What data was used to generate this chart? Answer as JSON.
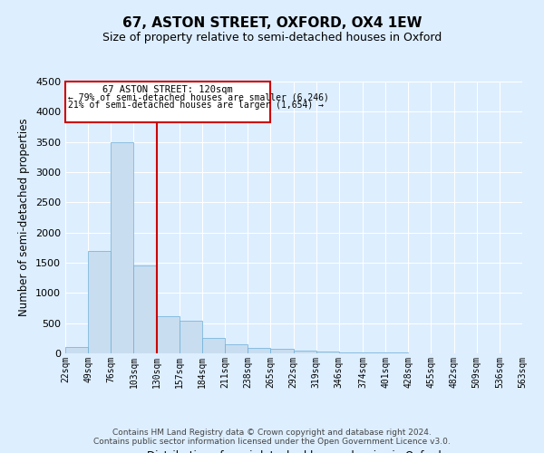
{
  "title": "67, ASTON STREET, OXFORD, OX4 1EW",
  "subtitle": "Size of property relative to semi-detached houses in Oxford",
  "xlabel": "Distribution of semi-detached houses by size in Oxford",
  "ylabel": "Number of semi-detached properties",
  "bin_edges": [
    22,
    49,
    76,
    103,
    130,
    157,
    184,
    211,
    238,
    265,
    292,
    319,
    346,
    374,
    401,
    428,
    455,
    482,
    509,
    536,
    563
  ],
  "bar_heights": [
    100,
    1700,
    3500,
    1450,
    620,
    540,
    250,
    150,
    95,
    75,
    50,
    28,
    18,
    12,
    8,
    6,
    4,
    4,
    2,
    2
  ],
  "bar_color": "#c8ddf0",
  "bar_edge_color": "#6aaed6",
  "vline_x": 130,
  "vline_color": "#cc0000",
  "annotation_title": "67 ASTON STREET: 120sqm",
  "annotation_line1": "← 79% of semi-detached houses are smaller (6,246)",
  "annotation_line2": "21% of semi-detached houses are larger (1,654) →",
  "annotation_box_color": "#cc0000",
  "annotation_bg": "#ffffff",
  "ylim": [
    0,
    4500
  ],
  "tick_labels": [
    "22sqm",
    "49sqm",
    "76sqm",
    "103sqm",
    "130sqm",
    "157sqm",
    "184sqm",
    "211sqm",
    "238sqm",
    "265sqm",
    "292sqm",
    "319sqm",
    "346sqm",
    "374sqm",
    "401sqm",
    "428sqm",
    "455sqm",
    "482sqm",
    "509sqm",
    "536sqm",
    "563sqm"
  ],
  "footer_line1": "Contains HM Land Registry data © Crown copyright and database right 2024.",
  "footer_line2": "Contains public sector information licensed under the Open Government Licence v3.0.",
  "bg_color": "#ddeeff",
  "plot_bg_color": "#ddeeff",
  "grid_color": "#ffffff",
  "title_fontsize": 11,
  "subtitle_fontsize": 9,
  "axis_label_fontsize": 8.5,
  "tick_fontsize": 7,
  "footer_fontsize": 6.5
}
